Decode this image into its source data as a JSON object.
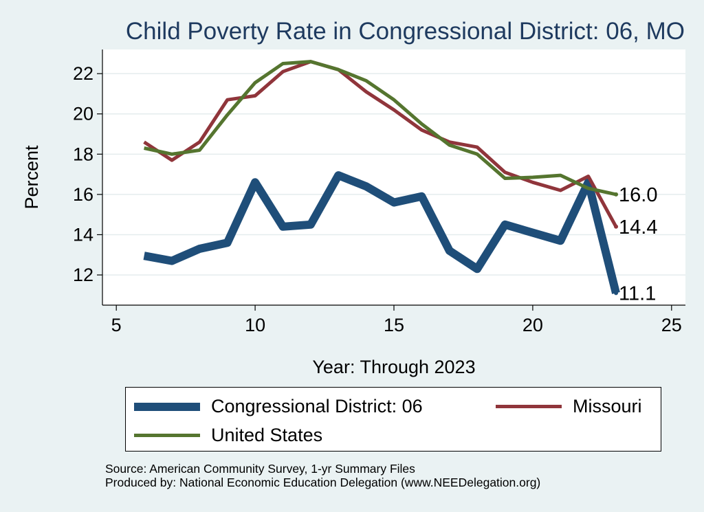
{
  "chart_data": {
    "type": "line",
    "title": "Child Poverty Rate in Congressional District:  06, MO",
    "xlabel": "Year: Through 2023",
    "ylabel": "Percent",
    "xlim": [
      4.5,
      25.5
    ],
    "ylim": [
      10.5,
      23.2
    ],
    "x_ticks": [
      5,
      10,
      15,
      20,
      25
    ],
    "y_ticks": [
      12,
      14,
      16,
      18,
      20,
      22
    ],
    "x_tick_labels": [
      "5",
      "10",
      "15",
      "20",
      "25"
    ],
    "y_tick_labels": [
      "12",
      "14",
      "16",
      "18",
      "20",
      "22"
    ],
    "grid": true,
    "legend_position": "bottom",
    "series": [
      {
        "name": "Congressional District:  06",
        "color": "#1f4e79",
        "x": [
          6,
          7,
          8,
          9,
          10,
          11,
          12,
          13,
          14,
          15,
          16,
          17,
          18,
          19,
          20,
          21,
          22,
          23
        ],
        "values": [
          12.95,
          12.7,
          13.3,
          13.6,
          16.6,
          14.4,
          14.5,
          16.95,
          16.4,
          15.6,
          15.9,
          13.2,
          12.3,
          14.5,
          14.1,
          13.7,
          16.6,
          11.1
        ],
        "end_label": "11.1"
      },
      {
        "name": "Missouri",
        "color": "#90353b",
        "x": [
          6,
          7,
          8,
          9,
          10,
          11,
          12,
          13,
          14,
          15,
          16,
          17,
          18,
          19,
          20,
          21,
          22,
          23
        ],
        "values": [
          18.6,
          17.7,
          18.6,
          20.7,
          20.9,
          22.1,
          22.6,
          22.2,
          21.1,
          20.2,
          19.2,
          18.6,
          18.35,
          17.1,
          16.6,
          16.2,
          16.9,
          14.4
        ],
        "end_label": "14.4"
      },
      {
        "name": "United States",
        "color": "#55752f",
        "x": [
          6,
          7,
          8,
          9,
          10,
          11,
          12,
          13,
          14,
          15,
          16,
          17,
          18,
          19,
          20,
          21,
          22,
          23
        ],
        "values": [
          18.3,
          18.0,
          18.2,
          19.95,
          21.55,
          22.5,
          22.6,
          22.2,
          21.65,
          20.7,
          19.5,
          18.45,
          18.0,
          16.8,
          16.85,
          16.95,
          16.3,
          16.0
        ],
        "end_label": "16.0"
      }
    ]
  },
  "legend": {
    "items": [
      {
        "label": "Congressional District:  06",
        "color": "#1f4e79"
      },
      {
        "label": "Missouri",
        "color": "#90353b"
      },
      {
        "label": "United States",
        "color": "#55752f"
      }
    ]
  },
  "footer": {
    "source": "Source: American Community Survey, 1-yr Summary Files",
    "produced_by": "Produced by: National Economic Education Delegation (www.NEEDelegation.org)"
  }
}
